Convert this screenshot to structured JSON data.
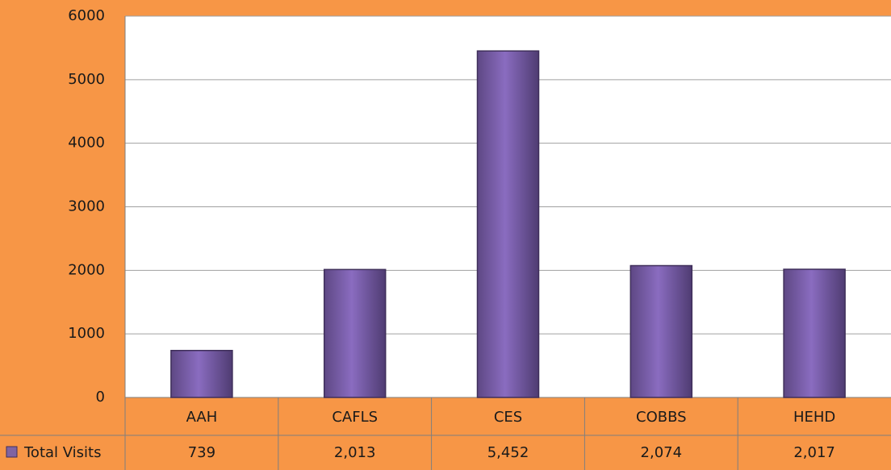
{
  "chart_data": {
    "type": "bar",
    "categories": [
      "AAH",
      "CAFLS",
      "CES",
      "COBBS",
      "HEHD"
    ],
    "series": [
      {
        "name": "Total Visits",
        "color": "#8064a2",
        "values": [
          739,
          2013,
          5452,
          2074,
          2017
        ],
        "value_labels": [
          "739",
          "2,013",
          "5,452",
          "2,074",
          "2,017"
        ]
      }
    ],
    "ylim": [
      0,
      6000
    ],
    "yticks": [
      0,
      1000,
      2000,
      3000,
      4000,
      5000,
      6000
    ],
    "grid": true
  }
}
